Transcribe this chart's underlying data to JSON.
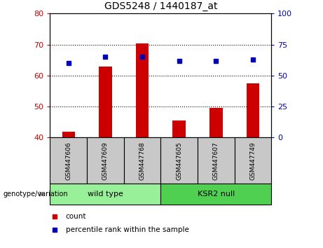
{
  "title": "GDS5248 / 1440187_at",
  "samples": [
    "GSM447606",
    "GSM447609",
    "GSM447768",
    "GSM447605",
    "GSM447607",
    "GSM447749"
  ],
  "bar_values": [
    42,
    63,
    70.5,
    45.5,
    49.5,
    57.5
  ],
  "dot_values_pct": [
    60,
    65,
    65,
    62,
    62,
    63
  ],
  "bar_bottom": 40,
  "ylim_left": [
    40,
    80
  ],
  "ylim_right": [
    0,
    100
  ],
  "yticks_left": [
    40,
    50,
    60,
    70,
    80
  ],
  "yticks_right": [
    0,
    25,
    50,
    75,
    100
  ],
  "bar_color": "#cc0000",
  "dot_color": "#0000bb",
  "tick_color_left": "#cc0000",
  "tick_color_right": "#0000bb",
  "sample_box_color": "#c8c8c8",
  "wt_color": "#98f098",
  "ksr_color": "#50d050",
  "legend_count_label": "count",
  "legend_pct_label": "percentile rank within the sample",
  "genotype_label": "genotype/variation",
  "wt_label": "wild type",
  "ksr_label": "KSR2 null"
}
